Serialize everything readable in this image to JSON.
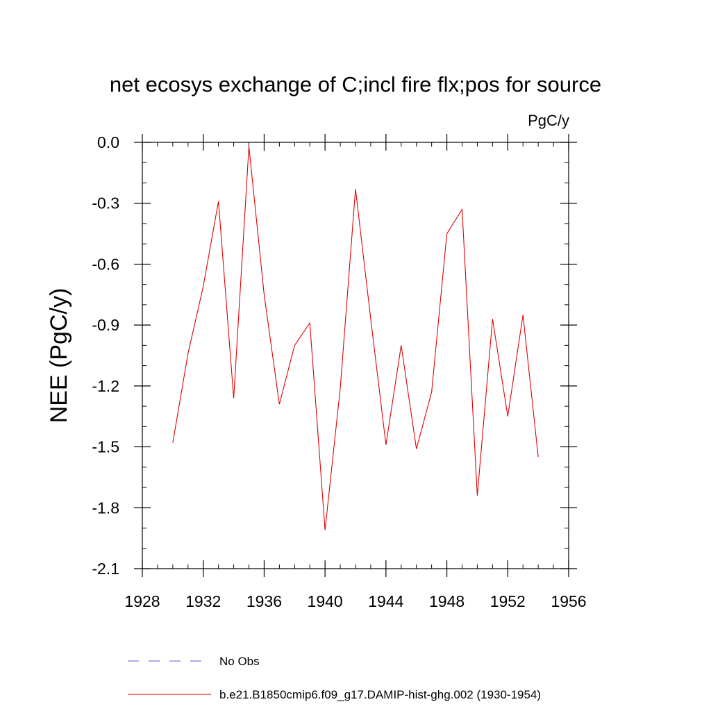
{
  "chart_data": {
    "type": "line",
    "title": "net ecosys exchange of C;incl fire flx;pos for source",
    "units_label": "PgC/y",
    "ylabel": "NEE  (PgC/y)",
    "xlabel": "",
    "xlim": [
      1928,
      1956
    ],
    "ylim": [
      -2.1,
      0.0
    ],
    "x_ticks": [
      1928,
      1932,
      1936,
      1940,
      1944,
      1948,
      1952,
      1956
    ],
    "x_tick_labels": [
      "1928",
      "1932",
      "1936",
      "1940",
      "1944",
      "1948",
      "1952",
      "1956"
    ],
    "y_ticks": [
      0.0,
      -0.3,
      -0.6,
      -0.9,
      -1.2,
      -1.5,
      -1.8,
      -2.1
    ],
    "y_tick_labels": [
      "0.0",
      "-0.3",
      "-0.6",
      "-0.9",
      "-1.2",
      "-1.5",
      "-1.8",
      "-2.1"
    ],
    "grid": false,
    "legend_position": "bottom",
    "series": [
      {
        "name": "b.e21.B1850cmip6.f09_g17.DAMIP-hist-ghg.002 (1930-1954)",
        "color": "#e00000",
        "style": "solid",
        "x": [
          1930,
          1931,
          1932,
          1933,
          1934,
          1935,
          1936,
          1937,
          1938,
          1939,
          1940,
          1941,
          1942,
          1943,
          1944,
          1945,
          1946,
          1947,
          1948,
          1949,
          1950,
          1951,
          1952,
          1953,
          1954
        ],
        "y": [
          -1.48,
          -1.04,
          -0.71,
          -0.29,
          -1.26,
          -0.02,
          -0.75,
          -1.29,
          -1.0,
          -0.89,
          -1.91,
          -1.21,
          -0.23,
          -0.87,
          -1.49,
          -1.0,
          -1.51,
          -1.23,
          -0.45,
          -0.33,
          -1.74,
          -0.87,
          -1.35,
          -0.85,
          -1.55
        ]
      }
    ],
    "legend": [
      {
        "label": "No Obs",
        "color": "#5a5ad8",
        "style": "dashed"
      },
      {
        "label": "b.e21.B1850cmip6.f09_g17.DAMIP-hist-ghg.002 (1930-1954)",
        "color": "#e00000",
        "style": "solid"
      }
    ]
  }
}
